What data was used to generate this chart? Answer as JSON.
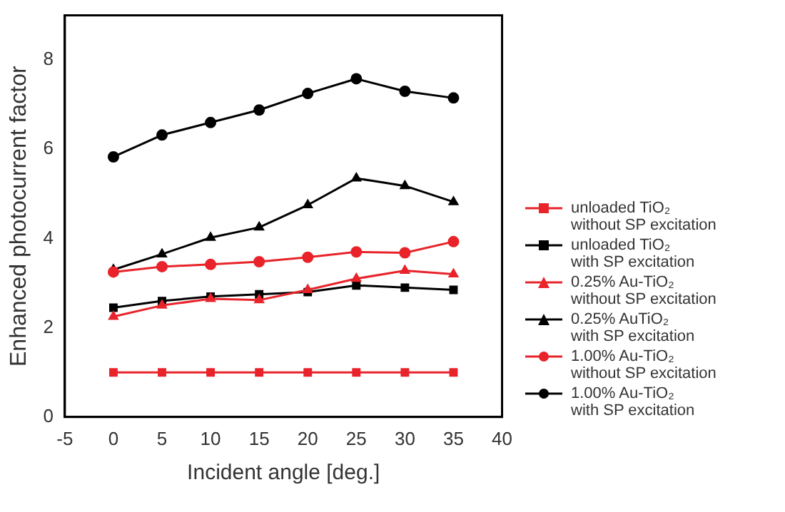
{
  "chart_data": {
    "type": "line",
    "xlabel": "Incident angle [deg.]",
    "ylabel": "Enhanced photocurrent factor",
    "x": [
      0,
      5,
      10,
      15,
      20,
      25,
      30,
      35
    ],
    "xlim": [
      -5,
      40
    ],
    "xticks": [
      -5,
      0,
      5,
      10,
      15,
      20,
      25,
      30,
      35,
      40
    ],
    "ylim": [
      0,
      9
    ],
    "yticks": [
      0,
      2,
      4,
      6,
      8
    ],
    "grid": false,
    "legend": "right",
    "line_style": "solid",
    "series": [
      {
        "name": "unloaded TiO₂\nwithout SP excitation",
        "color": "#e8232a",
        "marker": "square",
        "values": [
          1,
          1,
          1,
          1,
          1,
          1,
          1,
          1
        ]
      },
      {
        "name": "unloaded TiO₂\nwith SP excitation",
        "color": "#000000",
        "marker": "square",
        "values": [
          2.45,
          2.6,
          2.7,
          2.75,
          2.8,
          2.95,
          2.9,
          2.85
        ]
      },
      {
        "name": "0.25% Au-TiO₂\nwithout SP excitation",
        "color": "#e8232a",
        "marker": "triangle",
        "values": [
          2.25,
          2.5,
          2.65,
          2.62,
          2.85,
          3.1,
          3.28,
          3.2
        ]
      },
      {
        "name": "0.25% AuTiO₂\nwith SP excitation",
        "color": "#000000",
        "marker": "triangle",
        "values": [
          3.3,
          3.65,
          4.02,
          4.25,
          4.75,
          5.35,
          5.18,
          4.82
        ]
      },
      {
        "name": "1.00% Au-TiO₂\nwithout SP excitation",
        "color": "#e8232a",
        "marker": "circle",
        "values": [
          3.25,
          3.37,
          3.42,
          3.48,
          3.58,
          3.7,
          3.68,
          3.93
        ]
      },
      {
        "name": "1.00% Au-TiO₂\nwith SP excitation",
        "color": "#000000",
        "marker": "circle",
        "values": [
          5.83,
          6.32,
          6.6,
          6.88,
          7.25,
          7.58,
          7.3,
          7.15
        ]
      }
    ]
  }
}
